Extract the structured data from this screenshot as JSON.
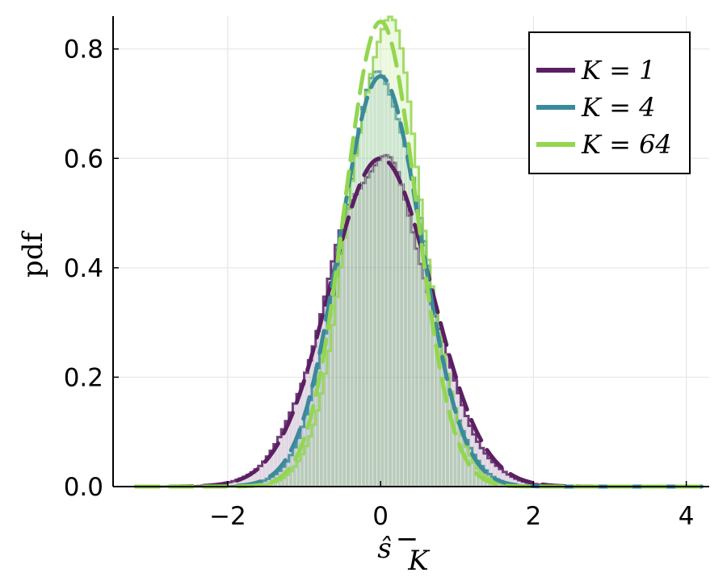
{
  "chart_data": {
    "type": "line",
    "title": "",
    "xlabel": "ŝ⁻_K",
    "ylabel": "pdf",
    "xlim": [
      -3.5,
      4.3
    ],
    "ylim": [
      0,
      0.86
    ],
    "x_ticks": [
      -2,
      0,
      2,
      4
    ],
    "x_tick_labels": [
      "−2",
      "0",
      "2",
      "4"
    ],
    "y_ticks": [
      0.0,
      0.2,
      0.4,
      0.6,
      0.8
    ],
    "y_tick_labels": [
      "0.0",
      "0.2",
      "0.4",
      "0.6",
      "0.8"
    ],
    "grid": true,
    "legend_position": "top-right",
    "series": [
      {
        "name": "K = 1",
        "color": "#5b1f63",
        "sigma": 0.665,
        "peak": 0.6,
        "hist_sigma": 0.66
      },
      {
        "name": "K = 4",
        "color": "#3a8a9a",
        "sigma": 0.532,
        "peak": 0.75,
        "hist_sigma": 0.53
      },
      {
        "name": "K = 64",
        "color": "#93d64f",
        "sigma": 0.469,
        "peak": 0.85,
        "hist_sigma": 0.475
      }
    ],
    "dashed_curves_x_range": [
      -3.2,
      4.2
    ],
    "histogram": {
      "bin_width": 0.05,
      "range": [
        -3.0,
        3.0
      ]
    }
  }
}
